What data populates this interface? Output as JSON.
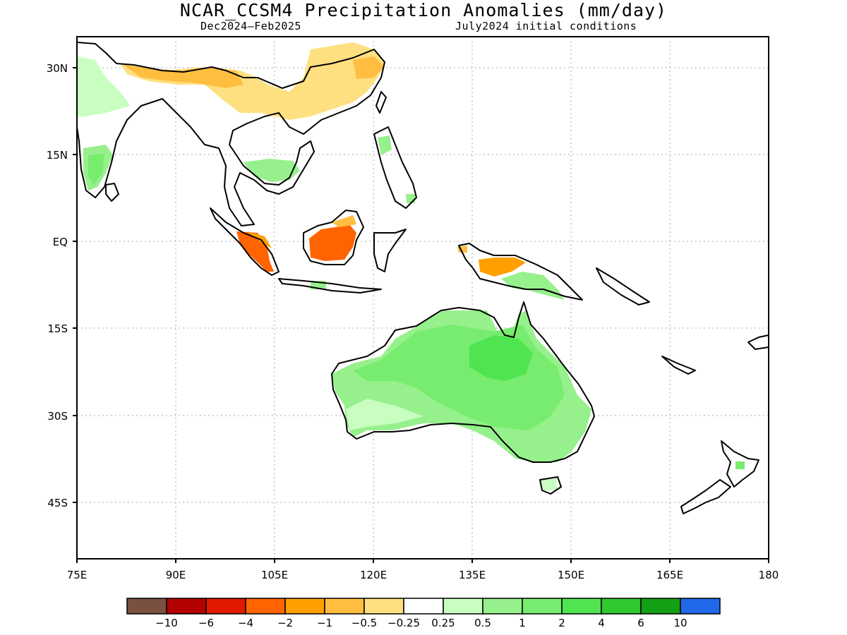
{
  "title": "NCAR_CCSM4 Precipitation Anomalies (mm/day)",
  "subtitle_left": "Dec2024–Feb2025",
  "subtitle_right": "July2024 initial conditions",
  "map": {
    "lon_range": [
      75,
      180
    ],
    "lat_range": [
      -53,
      35
    ],
    "lon_ticks": [
      "75E",
      "90E",
      "105E",
      "120E",
      "135E",
      "150E",
      "165E",
      "180"
    ],
    "lat_ticks": [
      "30N",
      "15N",
      "EQ",
      "15S",
      "30S",
      "45S"
    ],
    "grid": "dotted"
  },
  "colorbar": {
    "colors": [
      "#7a5040",
      "#b30000",
      "#e01a00",
      "#ff6400",
      "#ffa000",
      "#ffbe40",
      "#ffe080",
      "#ffffff",
      "#c8ffc0",
      "#96f08c",
      "#78ec6e",
      "#50e450",
      "#32c832",
      "#14a014",
      "#2068e8"
    ],
    "labels": [
      "−10",
      "−6",
      "−4",
      "−2",
      "−1",
      "−0.5",
      "−0.25",
      "0.25",
      "0.5",
      "1",
      "2",
      "4",
      "6",
      "10"
    ]
  },
  "regions": {
    "australia": "Wetter than normal (+0.5 to +4 mm/day)",
    "borneo": "Drier than normal (−2 to −4 mm/day)",
    "sumatra": "Drier than normal (−2 to −4 mm/day)",
    "new_guinea": "Drier north coast (−1 to −2), wetter south (+0.5 to +1)",
    "southern_china": "Drier than normal (−0.25 to −1 mm/day)",
    "southern_india": "Wetter than normal (+0.5 to +2 mm/day)"
  }
}
